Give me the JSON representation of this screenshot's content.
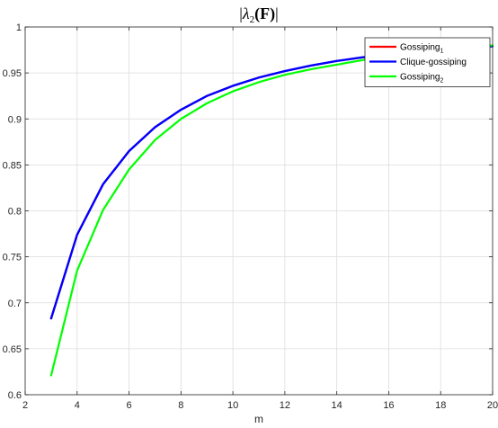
{
  "chart_data": {
    "type": "line",
    "title": "|λ2(F)|",
    "title_parts": {
      "prefix": "|",
      "lambda": "λ",
      "sub": "2",
      "arg": "(F)",
      "suffix": "|"
    },
    "xlabel": "m",
    "ylabel": "",
    "xlim": [
      2,
      20
    ],
    "ylim": [
      0.6,
      1.0
    ],
    "xticks": [
      "2",
      "4",
      "6",
      "8",
      "10",
      "12",
      "14",
      "16",
      "18",
      "20"
    ],
    "yticks": [
      "0.6",
      "0.65",
      "0.7",
      "0.75",
      "0.8",
      "0.85",
      "0.9",
      "0.95",
      "1"
    ],
    "grid": true,
    "legend_position": "top-right",
    "x": [
      3,
      4,
      5,
      6,
      7,
      8,
      9,
      10,
      11,
      12,
      13,
      14,
      15,
      16,
      17,
      18,
      19,
      20
    ],
    "series": [
      {
        "name": "Gossiping",
        "name_sub": "1",
        "color": "#ff0000",
        "values": [
          0.683,
          0.774,
          0.829,
          0.865,
          0.891,
          0.91,
          0.925,
          0.936,
          0.945,
          0.952,
          0.958,
          0.963,
          0.967,
          0.97,
          0.973,
          0.975,
          0.977,
          0.979
        ]
      },
      {
        "name": "Clique-gossiping",
        "name_sub": "",
        "color": "#0000ff",
        "values": [
          0.683,
          0.774,
          0.829,
          0.865,
          0.891,
          0.91,
          0.925,
          0.936,
          0.945,
          0.952,
          0.958,
          0.963,
          0.967,
          0.97,
          0.973,
          0.975,
          0.977,
          0.979
        ]
      },
      {
        "name": "Gossiping",
        "name_sub": "2",
        "color": "#00ff00",
        "values": [
          0.621,
          0.735,
          0.801,
          0.845,
          0.877,
          0.9,
          0.917,
          0.93,
          0.94,
          0.948,
          0.954,
          0.959,
          0.964,
          0.968,
          0.971,
          0.974,
          0.977,
          0.98
        ]
      }
    ]
  }
}
